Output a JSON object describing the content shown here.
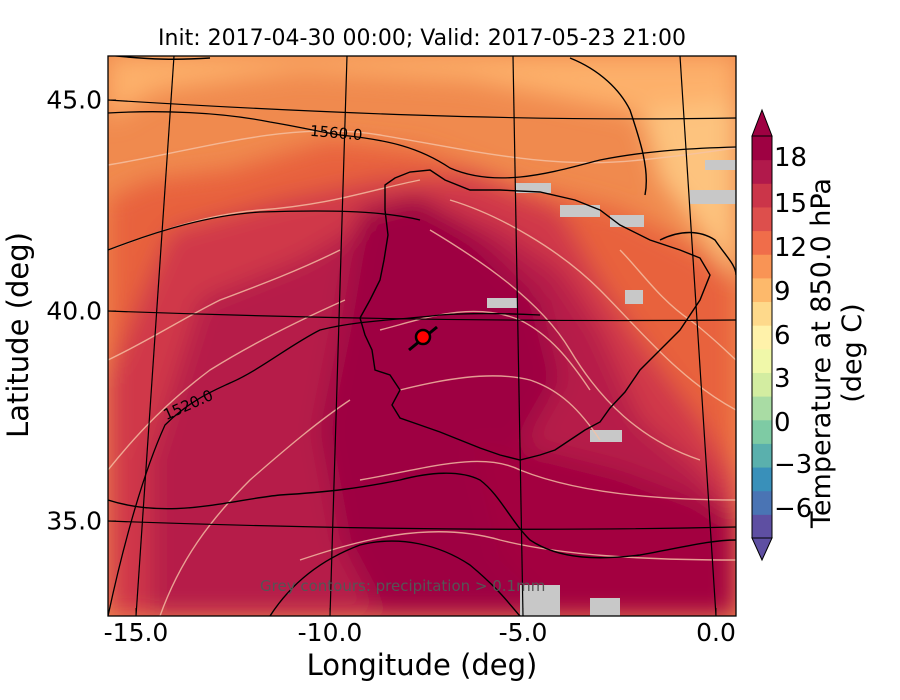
{
  "title": "Init: 2017-04-30 00:00; Valid: 2017-05-23 21:00",
  "xlabel": "Longitude (deg)",
  "ylabel": "Latitude (deg)",
  "xticks": [
    "-15.0",
    "-10.0",
    "-5.0",
    "0.0"
  ],
  "yticks": [
    "45.0",
    "40.0",
    "35.0"
  ],
  "colorbar": {
    "label": "Temperature at 850.0 hPa (deg C)",
    "ticks": [
      "18",
      "15",
      "12",
      "9",
      "6",
      "3",
      "0",
      "−3",
      "−6"
    ],
    "colors": [
      "#5e4fa2",
      "#4a74b4",
      "#3990ba",
      "#5ab0ad",
      "#7ecba4",
      "#a9dca4",
      "#d3eda1",
      "#f0f8a9",
      "#fff2aa",
      "#fed98b",
      "#fdb96b",
      "#f99455",
      "#f06d4a",
      "#dd4f4c",
      "#cb3549",
      "#b1194b",
      "#9e0142"
    ]
  },
  "geopotential_contour_labels": [
    "1560.0",
    "1520.0"
  ],
  "note": "Grey contours: precipitation > 0.1mm",
  "marker": {
    "label": "location marker",
    "color": "#ff0000"
  }
}
